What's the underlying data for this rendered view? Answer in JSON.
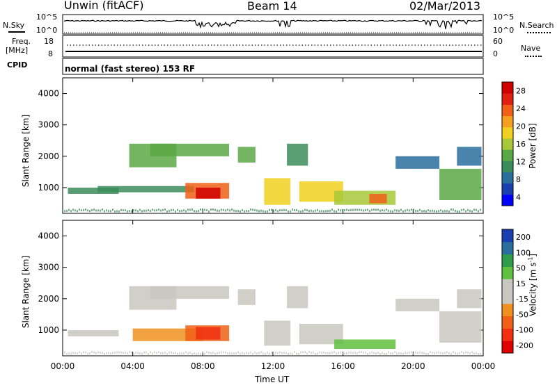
{
  "header": {
    "station": "Unwin (fitACF)",
    "beam": "Beam 14",
    "date": "02/Mar/2013"
  },
  "noise_panel": {
    "left_label": "N.Sky",
    "left_ticks": [
      "10^5",
      "10^0"
    ],
    "right_ticks": [
      "10^5",
      "10^0"
    ],
    "right_label": "N.Search"
  },
  "freq_panel": {
    "left_label_1": "Freq.",
    "left_label_2": "[MHz]",
    "left_ticks": [
      "18",
      "8"
    ],
    "right_ticks": [
      "60",
      "0"
    ],
    "right_label": "Nave"
  },
  "cpid_panel": {
    "label": "CPID",
    "text": "normal (fast stereo) 153 RF"
  },
  "x_axis": {
    "label": "Time UT",
    "ticks": [
      "00:00",
      "04:00",
      "08:00",
      "12:00",
      "16:00",
      "20:00",
      "00:00"
    ]
  },
  "colors": {
    "power_scale": [
      "#0000ff",
      "#1a3fb0",
      "#2a6e9e",
      "#3b8c5a",
      "#5aa845",
      "#a8c83a",
      "#f0d020",
      "#f5a020",
      "#f06018",
      "#e02010",
      "#d00000"
    ],
    "velocity_scale": [
      "#e00000",
      "#f03010",
      "#f06018",
      "#f09020",
      "#c8c8c0",
      "#c8c8c0",
      "#60c040",
      "#2e9c4a",
      "#2a6e9e",
      "#1a3fb0"
    ]
  },
  "chart_data": [
    {
      "type": "heatmap",
      "title": "",
      "xlabel": "Time UT",
      "ylabel": "Slant Range [km]",
      "xlim": [
        0,
        24
      ],
      "ylim": [
        180,
        4500
      ],
      "yticks": [
        "1000",
        "2000",
        "3000",
        "4000"
      ],
      "colorbar": {
        "label": "Power [dB]",
        "ticks": [
          "28",
          "24",
          "20",
          "16",
          "12",
          "8",
          "4"
        ],
        "range": [
          0,
          30
        ]
      },
      "bands": [
        {
          "t0": 0.3,
          "t1": 3.2,
          "r0": 800,
          "r1": 1000,
          "value": 10
        },
        {
          "t0": 3.8,
          "t1": 6.5,
          "r0": 1650,
          "r1": 2400,
          "value": 12
        },
        {
          "t0": 5.0,
          "t1": 9.5,
          "r0": 2000,
          "r1": 2400,
          "value": 11
        },
        {
          "t0": 2.0,
          "t1": 7.5,
          "r0": 850,
          "r1": 1050,
          "value": 9
        },
        {
          "t0": 7.0,
          "t1": 9.5,
          "r0": 650,
          "r1": 1150,
          "value": 23
        },
        {
          "t0": 7.6,
          "t1": 9.0,
          "r0": 650,
          "r1": 1000,
          "value": 28
        },
        {
          "t0": 10.0,
          "t1": 11.0,
          "r0": 1800,
          "r1": 2300,
          "value": 12
        },
        {
          "t0": 11.5,
          "t1": 13.0,
          "r0": 450,
          "r1": 1300,
          "value": 18
        },
        {
          "t0": 12.8,
          "t1": 14.0,
          "r0": 1700,
          "r1": 2400,
          "value": 10
        },
        {
          "t0": 13.5,
          "t1": 16.0,
          "r0": 550,
          "r1": 1200,
          "value": 17
        },
        {
          "t0": 15.5,
          "t1": 19.0,
          "r0": 450,
          "r1": 900,
          "value": 15
        },
        {
          "t0": 17.5,
          "t1": 18.5,
          "r0": 500,
          "r1": 800,
          "value": 22
        },
        {
          "t0": 19.0,
          "t1": 21.5,
          "r0": 1600,
          "r1": 2000,
          "value": 8
        },
        {
          "t0": 21.5,
          "t1": 23.9,
          "r0": 600,
          "r1": 1600,
          "value": 11
        },
        {
          "t0": 22.5,
          "t1": 23.9,
          "r0": 1700,
          "r1": 2300,
          "value": 8
        }
      ]
    },
    {
      "type": "heatmap",
      "title": "",
      "xlabel": "Time UT",
      "ylabel": "Slant Range [km]",
      "xlim": [
        0,
        24
      ],
      "ylim": [
        180,
        4500
      ],
      "yticks": [
        "1000",
        "2000",
        "3000",
        "4000"
      ],
      "colorbar": {
        "label": "Velocity [m s^-1]",
        "ticks": [
          "200",
          "100",
          "50",
          "15",
          "-15",
          "-50",
          "-100",
          "-200"
        ],
        "range": [
          -250,
          250
        ]
      },
      "bands": [
        {
          "t0": 0.3,
          "t1": 3.2,
          "r0": 800,
          "r1": 1000,
          "value": -5
        },
        {
          "t0": 3.8,
          "t1": 6.5,
          "r0": 1650,
          "r1": 2400,
          "value": -40
        },
        {
          "t0": 5.0,
          "t1": 9.5,
          "r0": 2000,
          "r1": 2400,
          "value": -10
        },
        {
          "t0": 4.0,
          "t1": 8.0,
          "r0": 650,
          "r1": 1050,
          "value": -60
        },
        {
          "t0": 7.0,
          "t1": 9.5,
          "r0": 650,
          "r1": 1150,
          "value": -110
        },
        {
          "t0": 7.6,
          "t1": 9.0,
          "r0": 700,
          "r1": 1100,
          "value": -200
        },
        {
          "t0": 10.0,
          "t1": 11.0,
          "r0": 1800,
          "r1": 2300,
          "value": 30
        },
        {
          "t0": 11.5,
          "t1": 13.0,
          "r0": 500,
          "r1": 1300,
          "value": -5
        },
        {
          "t0": 12.8,
          "t1": 14.0,
          "r0": 1700,
          "r1": 2400,
          "value": -5
        },
        {
          "t0": 13.5,
          "t1": 16.0,
          "r0": 550,
          "r1": 1200,
          "value": 40
        },
        {
          "t0": 15.5,
          "t1": 19.0,
          "r0": 400,
          "r1": 700,
          "value": 60
        },
        {
          "t0": 19.0,
          "t1": 21.5,
          "r0": 1600,
          "r1": 2000,
          "value": -5
        },
        {
          "t0": 21.5,
          "t1": 23.9,
          "r0": 600,
          "r1": 1600,
          "value": -5
        },
        {
          "t0": 22.5,
          "t1": 23.9,
          "r0": 1700,
          "r1": 2300,
          "value": -5
        }
      ]
    }
  ]
}
